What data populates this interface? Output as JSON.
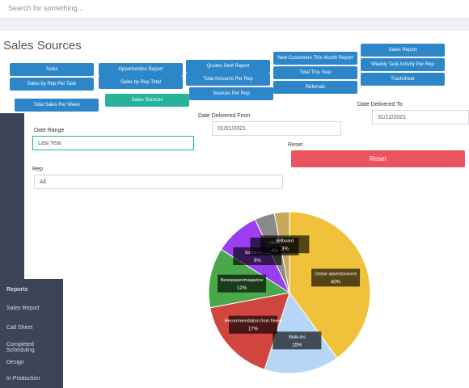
{
  "header": {
    "search": "Search for something..."
  },
  "page": {
    "title": "Sales Sources"
  },
  "buttons": [
    "Tasks",
    "Opportunities Report",
    "Quotes Sent Report",
    "New Customers This Month Report",
    "Sales Report",
    "Sales by Rep Per Task",
    "Sales by Rep Total",
    "Total Amounts Per Rep",
    "Total This Year",
    "Weekly Task Activity Per Rep",
    "Total Sales Per Week",
    "Sales Sources",
    "Sources Per Rep",
    "Referrals",
    "Tracksheet"
  ],
  "form": {
    "date_range": {
      "label": "Date Range",
      "value": "Last Year"
    },
    "date_from": {
      "label": "Date Delivered From",
      "value": "01/01/2021"
    },
    "date_to": {
      "label": "Date Delivered To",
      "value": "31/12/2021"
    },
    "reset": {
      "label": "Reset",
      "button": "Reset"
    },
    "rep": {
      "label": "Rep",
      "value": "All"
    }
  },
  "sidebar": {
    "items": [
      "Reports",
      "Sales Report",
      "Call Sheet",
      "Completed Scheduling",
      "Design",
      "In Production"
    ]
  },
  "chart_data": {
    "type": "pie",
    "categories": [
      "Online advertisement",
      "Walk-ins",
      "Recommendation from friend",
      "Newspaper/magazine",
      "Social media",
      "Other",
      "Billboard"
    ],
    "values": [
      40,
      15,
      17,
      12,
      9,
      4,
      3
    ],
    "value_labels": [
      "40%",
      "15%",
      "17%",
      "12%",
      "9%",
      "4%",
      "3%"
    ],
    "colors": [
      "#f0c23b",
      "#b5d6f5",
      "#d0463f",
      "#4aa84a",
      "#9a3ff0",
      "#8a8a8a",
      "#c8a85a"
    ]
  }
}
